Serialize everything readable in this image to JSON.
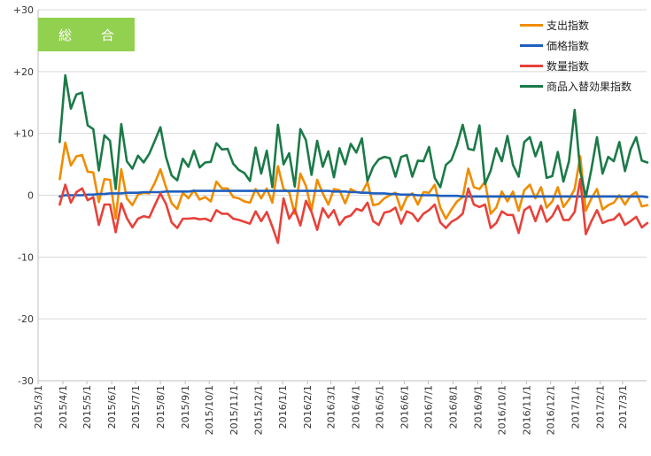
{
  "chart_data": {
    "type": "line",
    "title": "総 合",
    "ylim": [
      -30,
      30
    ],
    "y_ticks": [
      "+30",
      "+20",
      "+10",
      "0",
      "-10",
      "-20",
      "-30"
    ],
    "y_tick_values": [
      30,
      20,
      10,
      0,
      -10,
      -20,
      -30
    ],
    "x_tick_labels": [
      "2015/3/1",
      "2015/4/1",
      "2015/5/1",
      "2015/6/1",
      "2015/7/1",
      "2015/8/1",
      "2015/9/1",
      "2015/10/1",
      "2015/11/1",
      "2015/12/1",
      "2016/1/1",
      "2016/2/1",
      "2016/3/1",
      "2016/4/1",
      "2016/5/1",
      "2016/6/1",
      "2016/7/1",
      "2016/8/1",
      "2016/9/1",
      "2016/10/1",
      "2016/11/1",
      "2016/12/1",
      "2017/1/1",
      "2017/2/1",
      "2017/3/1"
    ],
    "x_start": "2015/3/1",
    "x_end": "2017/3/31",
    "point_start": "2015/3/28",
    "point_interval_days": 7,
    "grid": "horizontal",
    "legend_position": "top-right",
    "series": [
      {
        "name": "支出指数",
        "color": "#f08c00",
        "values": [
          2.6,
          8.5,
          4.8,
          6.3,
          6.5,
          3.8,
          3.7,
          -1.1,
          2.6,
          2.5,
          -3.8,
          4.2,
          -0.5,
          -1.6,
          0.1,
          0.4,
          0.3,
          2.0,
          4.2,
          1.3,
          -1.3,
          -2.2,
          0.4,
          -0.5,
          0.8,
          -0.7,
          -0.3,
          -1.0,
          2.2,
          1.1,
          1.1,
          -0.3,
          -0.5,
          -1.0,
          -1.2,
          1.0,
          -0.5,
          1.1,
          -1.2,
          4.7,
          1.0,
          0.5,
          -3.0,
          3.5,
          1.5,
          -2.4,
          2.5,
          0.3,
          -1.5,
          1.0,
          0.8,
          -1.3,
          1.0,
          0.5,
          0.4,
          2.1,
          -1.6,
          -1.4,
          -0.5,
          0.0,
          0.4,
          -2.4,
          -0.3,
          0.3,
          -1.5,
          0.5,
          0.4,
          1.7,
          -2.0,
          -3.8,
          -2.3,
          -1.0,
          -0.3,
          4.3,
          1.3,
          1.0,
          2.2,
          -3.0,
          -2.0,
          0.6,
          -1.0,
          0.6,
          -2.5,
          0.8,
          1.7,
          -0.5,
          1.3,
          -2.0,
          -1.0,
          1.3,
          -1.9,
          -0.7,
          1.0,
          6.3,
          -2.5,
          -0.5,
          1.0,
          -2.3,
          -1.6,
          -1.2,
          0.0,
          -1.5,
          -0.1,
          0.5,
          -1.8,
          -1.6
        ]
      },
      {
        "name": "価格指数",
        "color": "#1f5fbe",
        "values": [
          -0.2,
          0.0,
          0.0,
          0.0,
          0.0,
          0.1,
          0.1,
          0.2,
          0.2,
          0.3,
          0.3,
          0.3,
          0.4,
          0.4,
          0.4,
          0.5,
          0.5,
          0.5,
          0.5,
          0.6,
          0.6,
          0.6,
          0.6,
          0.6,
          0.7,
          0.7,
          0.7,
          0.7,
          0.7,
          0.7,
          0.7,
          0.7,
          0.7,
          0.7,
          0.7,
          0.7,
          0.7,
          0.7,
          0.7,
          0.7,
          0.7,
          0.7,
          0.7,
          0.7,
          0.7,
          0.7,
          0.7,
          0.7,
          0.7,
          0.6,
          0.6,
          0.6,
          0.5,
          0.5,
          0.4,
          0.4,
          0.3,
          0.3,
          0.3,
          0.2,
          0.2,
          0.1,
          0.1,
          0.1,
          0.0,
          0.0,
          0.0,
          0.0,
          -0.1,
          -0.1,
          -0.1,
          -0.1,
          -0.2,
          -0.2,
          -0.2,
          -0.2,
          -0.2,
          -0.2,
          -0.2,
          -0.2,
          -0.2,
          -0.2,
          -0.2,
          -0.2,
          -0.2,
          -0.2,
          -0.2,
          -0.2,
          -0.2,
          -0.2,
          -0.2,
          -0.2,
          -0.2,
          -0.2,
          -0.2,
          -0.2,
          -0.2,
          -0.2,
          -0.2,
          -0.2,
          -0.2,
          -0.2,
          -0.2,
          -0.2,
          -0.2,
          -0.3
        ]
      },
      {
        "name": "数量指数",
        "color": "#e8413a",
        "values": [
          -1.5,
          1.7,
          -1.2,
          0.5,
          1.1,
          -0.8,
          -0.3,
          -4.8,
          -1.5,
          -1.5,
          -6.0,
          -1.3,
          -3.7,
          -5.2,
          -3.8,
          -3.4,
          -3.6,
          -1.6,
          0.3,
          -1.4,
          -4.4,
          -5.3,
          -3.8,
          -3.8,
          -3.7,
          -3.9,
          -3.8,
          -4.2,
          -2.4,
          -3.0,
          -3.0,
          -3.8,
          -4.0,
          -4.3,
          -4.6,
          -2.6,
          -4.2,
          -2.7,
          -5.1,
          -7.7,
          -0.5,
          -3.8,
          -2.3,
          -4.9,
          -0.9,
          -2.7,
          -5.6,
          -2.1,
          -3.6,
          -2.4,
          -4.8,
          -3.6,
          -3.3,
          -2.2,
          -2.5,
          -1.2,
          -4.2,
          -4.8,
          -2.8,
          -2.6,
          -2.0,
          -4.6,
          -2.6,
          -3.0,
          -4.2,
          -3.0,
          -2.4,
          -1.5,
          -4.4,
          -5.3,
          -4.3,
          -3.8,
          -3.0,
          1.1,
          -1.5,
          -1.9,
          -1.5,
          -5.3,
          -4.5,
          -2.6,
          -3.2,
          -3.2,
          -6.1,
          -2.4,
          -1.8,
          -4.2,
          -1.7,
          -4.3,
          -3.4,
          -1.7,
          -4.0,
          -4.0,
          -2.7,
          2.6,
          -6.3,
          -4.2,
          -2.4,
          -4.5,
          -4.1,
          -3.9,
          -3.0,
          -4.8,
          -4.2,
          -3.5,
          -5.2,
          -4.5
        ]
      },
      {
        "name": "商品入替効果指数",
        "color": "#1b7a48",
        "values": [
          8.6,
          19.4,
          14.0,
          16.3,
          16.6,
          11.3,
          10.7,
          4.0,
          9.7,
          8.8,
          1.0,
          11.5,
          5.5,
          4.3,
          6.4,
          5.3,
          6.7,
          8.8,
          11.0,
          6.2,
          3.2,
          2.4,
          5.9,
          4.6,
          7.2,
          4.5,
          5.3,
          5.4,
          8.4,
          7.4,
          7.5,
          5.1,
          4.1,
          3.6,
          2.3,
          7.7,
          3.5,
          7.2,
          1.3,
          11.4,
          5.0,
          6.8,
          1.4,
          10.7,
          8.9,
          3.3,
          8.8,
          4.6,
          7.1,
          2.9,
          7.6,
          5.0,
          8.3,
          6.9,
          9.2,
          2.3,
          4.6,
          5.8,
          6.2,
          6.0,
          3.0,
          6.2,
          6.5,
          3.0,
          5.6,
          5.5,
          7.8,
          2.8,
          1.3,
          4.9,
          5.7,
          8.1,
          11.4,
          7.5,
          7.3,
          11.3,
          1.8,
          4.0,
          7.6,
          5.5,
          9.6,
          4.9,
          3.0,
          8.6,
          9.4,
          6.3,
          8.6,
          2.8,
          3.1,
          7.0,
          2.2,
          5.5,
          13.8,
          3.9,
          -0.3,
          4.2,
          9.4,
          3.5,
          6.2,
          5.5,
          8.6,
          3.9,
          7.4,
          9.4,
          5.6,
          5.3
        ]
      }
    ]
  }
}
